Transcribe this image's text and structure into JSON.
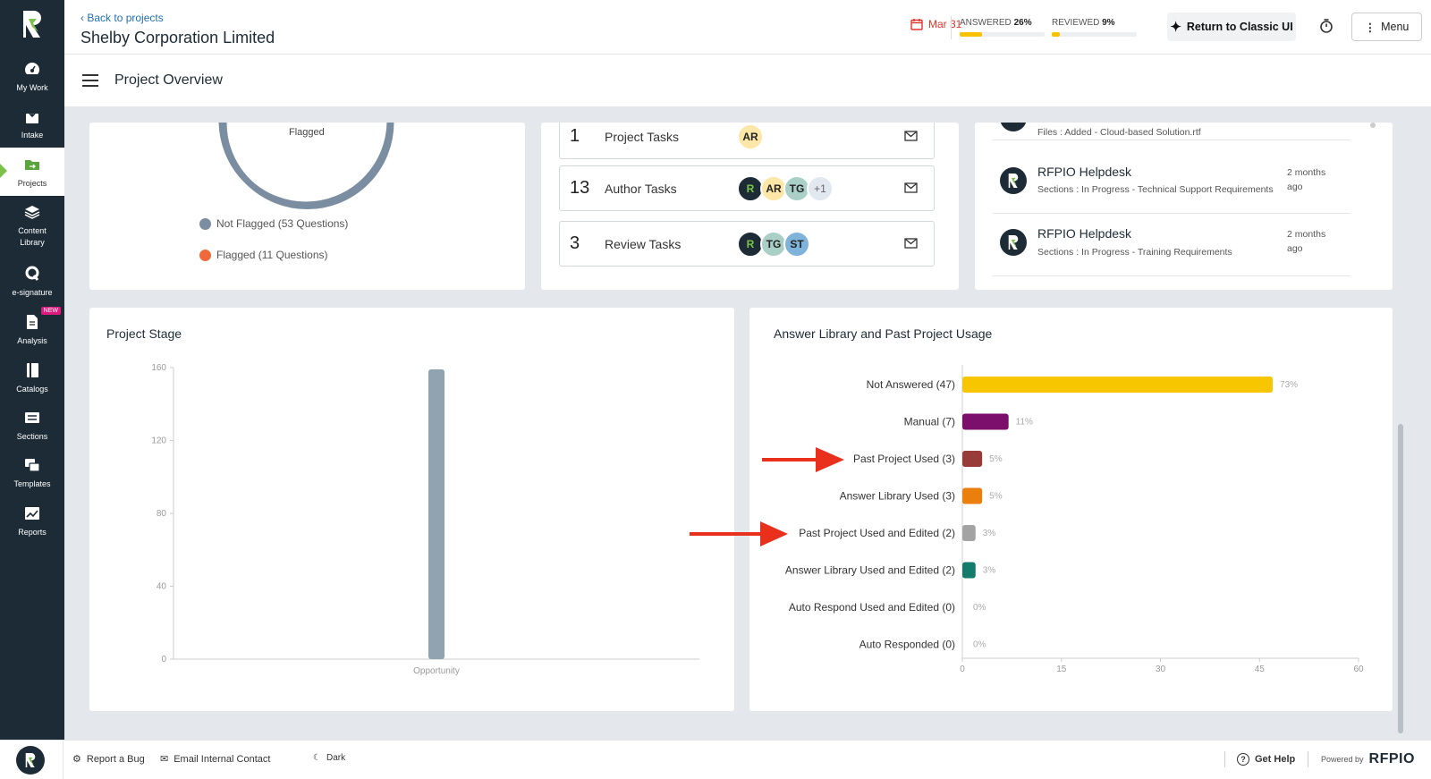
{
  "sidebar": {
    "items": [
      {
        "label": "My Work",
        "icon": "gauge-icon"
      },
      {
        "label": "Intake",
        "icon": "inbox-download-icon"
      },
      {
        "label": "Projects",
        "icon": "folder-icon"
      },
      {
        "label": "Content\nLibrary",
        "icon": "stack-icon"
      },
      {
        "label": "e-signature",
        "icon": "signature-icon"
      },
      {
        "label": "Analysis",
        "icon": "document-icon",
        "badge": "NEW"
      },
      {
        "label": "Catalogs",
        "icon": "book-icon"
      },
      {
        "label": "Sections",
        "icon": "section-icon"
      },
      {
        "label": "Templates",
        "icon": "templates-icon"
      },
      {
        "label": "Reports",
        "icon": "chart-icon"
      }
    ]
  },
  "header": {
    "back_label": "Back to projects",
    "project_title": "Shelby Corporation Limited",
    "due_date": "Mar 31",
    "answered_label": "ANSWERED",
    "answered_pct": "26%",
    "answered_fraction": 0.26,
    "reviewed_label": "REVIEWED",
    "reviewed_pct": "9%",
    "reviewed_fraction": 0.09,
    "classic_label": "Return to Classic UI",
    "menu_label": "Menu"
  },
  "subheader": {
    "title": "Project Overview"
  },
  "flag_card": {
    "ring_label": "Flagged",
    "legend": [
      {
        "label": "Not Flagged (53 Questions)",
        "color": "#7b8da0"
      },
      {
        "label": "Flagged (11 Questions)",
        "color": "#ee6a3c"
      }
    ]
  },
  "tasks": [
    {
      "count": "1",
      "label": "Project Tasks",
      "avatars": [
        "AR"
      ]
    },
    {
      "count": "13",
      "label": "Author Tasks",
      "avatars": [
        "R",
        "AR",
        "TG",
        "+1"
      ]
    },
    {
      "count": "3",
      "label": "Review Tasks",
      "avatars": [
        "R",
        "TG",
        "ST"
      ]
    }
  ],
  "activity": {
    "partial_desc": "Files : Added - Cloud-based Solution.rtf",
    "items": [
      {
        "name": "RFPIO Helpdesk",
        "desc": "Sections : In Progress - Technical Support Requirements",
        "time": "2 months ago"
      },
      {
        "name": "RFPIO Helpdesk",
        "desc": "Sections : In Progress - Training Requirements",
        "time": "2 months ago"
      }
    ]
  },
  "chart_data": [
    {
      "type": "bar",
      "title": "Project Stage",
      "categories": [
        "Opportunity"
      ],
      "values": [
        159
      ],
      "ylim": [
        0,
        160
      ],
      "yticks": [
        0,
        40,
        80,
        120,
        160
      ],
      "color": "#8fa3b1"
    },
    {
      "type": "bar",
      "orientation": "horizontal",
      "title": "Answer Library and Past Project Usage",
      "categories": [
        "Not Answered (47)",
        "Manual (7)",
        "Past Project Used (3)",
        "Answer Library Used (3)",
        "Past Project Used and Edited (2)",
        "Answer Library Used and Edited (2)",
        "Auto Respond Used and Edited (0)",
        "Auto Responded (0)"
      ],
      "values": [
        47,
        7,
        3,
        3,
        2,
        2,
        0,
        0
      ],
      "data_labels": [
        "73%",
        "11%",
        "5%",
        "5%",
        "3%",
        "3%",
        "0%",
        "0%"
      ],
      "colors": [
        "#f7c600",
        "#7b0f6b",
        "#983c3a",
        "#ea7f0e",
        "#a3a3a3",
        "#137a6c",
        "#cccccc",
        "#cccccc"
      ],
      "xlim": [
        0,
        60
      ],
      "xticks": [
        0,
        15,
        30,
        45,
        60
      ]
    }
  ],
  "footer": {
    "report_bug": "Report a Bug",
    "email_contact": "Email Internal Contact",
    "dark": "Dark",
    "get_help": "Get Help",
    "powered_by": "Powered by",
    "brand": "RFPIO"
  }
}
